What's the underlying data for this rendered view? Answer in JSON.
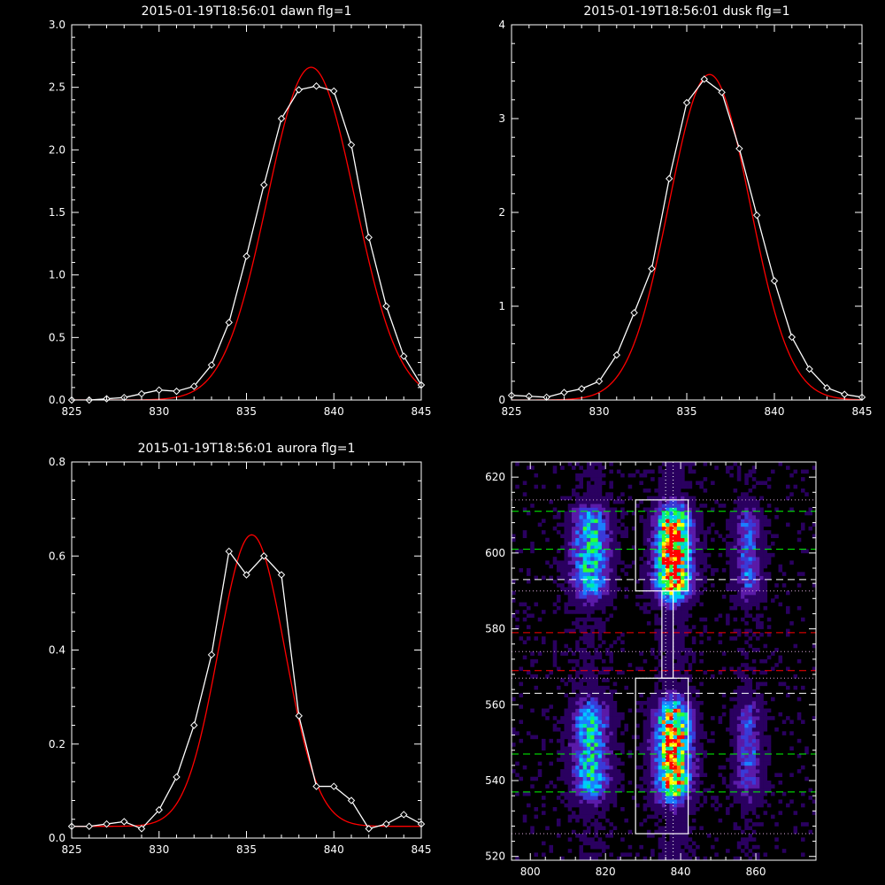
{
  "chart_data": [
    {
      "type": "line",
      "title": "2015-01-19T18:56:01 dawn flg=1",
      "xlim": [
        825,
        845
      ],
      "ylim": [
        0,
        3.0
      ],
      "xticks": [
        "825",
        "830",
        "835",
        "840",
        "845"
      ],
      "yticks": [
        "0.0",
        "0.5",
        "1.0",
        "1.5",
        "2.0",
        "2.5",
        "3.0"
      ],
      "series": [
        {
          "kind": "observed",
          "color": "#ffffff",
          "marker": "diamond",
          "x": [
            825,
            826,
            827,
            828,
            829,
            830,
            831,
            832,
            833,
            834,
            835,
            836,
            837,
            838,
            839,
            840,
            841,
            842,
            843,
            844,
            845
          ],
          "y": [
            0.0,
            0.0,
            0.01,
            0.02,
            0.05,
            0.08,
            0.07,
            0.11,
            0.28,
            0.62,
            1.15,
            1.72,
            2.25,
            2.48,
            2.51,
            2.47,
            2.04,
            1.3,
            0.75,
            0.35,
            0.12
          ]
        },
        {
          "kind": "fit",
          "color": "#ff0000",
          "model": "gaussian",
          "amplitude": 2.66,
          "center": 838.7,
          "sigma": 2.5
        }
      ]
    },
    {
      "type": "line",
      "title": "2015-01-19T18:56:01 dusk flg=1",
      "xlim": [
        825,
        845
      ],
      "ylim": [
        0,
        4
      ],
      "xticks": [
        "825",
        "830",
        "835",
        "840",
        "845"
      ],
      "yticks": [
        "0",
        "1",
        "2",
        "3",
        "4"
      ],
      "series": [
        {
          "kind": "observed",
          "color": "#ffffff",
          "marker": "diamond",
          "x": [
            825,
            826,
            827,
            828,
            829,
            830,
            831,
            832,
            833,
            834,
            835,
            836,
            837,
            838,
            839,
            840,
            841,
            842,
            843,
            844,
            845
          ],
          "y": [
            0.05,
            0.04,
            0.03,
            0.08,
            0.12,
            0.2,
            0.48,
            0.93,
            1.4,
            2.36,
            3.17,
            3.42,
            3.28,
            2.68,
            1.97,
            1.27,
            0.67,
            0.33,
            0.13,
            0.06,
            0.03
          ]
        },
        {
          "kind": "fit",
          "color": "#ff0000",
          "model": "gaussian",
          "amplitude": 3.47,
          "center": 836.3,
          "sigma": 2.3
        }
      ]
    },
    {
      "type": "line",
      "title": "2015-01-19T18:56:01 aurora flg=1",
      "xlim": [
        825,
        845
      ],
      "ylim": [
        0,
        0.8
      ],
      "xticks": [
        "825",
        "830",
        "835",
        "840",
        "845"
      ],
      "yticks": [
        "0.0",
        "0.2",
        "0.4",
        "0.6",
        "0.8"
      ],
      "series": [
        {
          "kind": "observed",
          "color": "#ffffff",
          "marker": "diamond",
          "x": [
            825,
            826,
            827,
            828,
            829,
            830,
            831,
            832,
            833,
            834,
            835,
            836,
            837,
            838,
            839,
            840,
            841,
            842,
            843,
            844,
            845
          ],
          "y": [
            0.025,
            0.025,
            0.03,
            0.035,
            0.02,
            0.06,
            0.13,
            0.24,
            0.39,
            0.61,
            0.56,
            0.6,
            0.56,
            0.26,
            0.11,
            0.11,
            0.08,
            0.02,
            0.03,
            0.05,
            0.03
          ]
        },
        {
          "kind": "fit",
          "color": "#ff0000",
          "model": "gaussian",
          "amplitude": 0.62,
          "center": 835.3,
          "sigma": 1.9,
          "offset": 0.025
        }
      ]
    },
    {
      "type": "heatmap",
      "title": "",
      "xlim": [
        795,
        876
      ],
      "ylim": [
        519,
        624
      ],
      "xticks": [
        "800",
        "820",
        "840",
        "860"
      ],
      "yticks": [
        "520",
        "540",
        "560",
        "580",
        "600",
        "620"
      ],
      "colormap": [
        "#000000",
        "#2a0060",
        "#5a1aa8",
        "#3a3ad8",
        "#1a7fff",
        "#00c8ff",
        "#00e8a0",
        "#30ff30",
        "#ffff00",
        "#ff8000",
        "#ff0000"
      ],
      "columns": [
        {
          "center": 816,
          "width": 4,
          "strength": 0.55
        },
        {
          "center": 838,
          "width": 4,
          "strength": 1.0
        },
        {
          "center": 858,
          "width": 3,
          "strength": 0.3
        }
      ],
      "rows": [
        {
          "from": 588,
          "to": 612,
          "strength": 1.0
        },
        {
          "from": 534,
          "to": 562,
          "strength": 0.9
        }
      ],
      "boxes": [
        {
          "x": [
            828,
            842
          ],
          "y": [
            590,
            614
          ]
        },
        {
          "x": [
            828,
            842
          ],
          "y": [
            526,
            567
          ]
        },
        {
          "x": [
            835,
            838
          ],
          "y": [
            567,
            590
          ]
        }
      ],
      "vlines_dotted": [
        836,
        838
      ],
      "hlines": [
        {
          "y": 611,
          "color": "#00ff00",
          "style": "dashed"
        },
        {
          "y": 601,
          "color": "#00ff00",
          "style": "dashed"
        },
        {
          "y": 593,
          "color": "#ffffff",
          "style": "dashed"
        },
        {
          "y": 579,
          "color": "#ff0000",
          "style": "dashed"
        },
        {
          "y": 569,
          "color": "#ff0000",
          "style": "dashed"
        },
        {
          "y": 563,
          "color": "#ffffff",
          "style": "dashed"
        },
        {
          "y": 547,
          "color": "#00ff00",
          "style": "dashed"
        },
        {
          "y": 537,
          "color": "#00ff00",
          "style": "dashed"
        },
        {
          "y": 614,
          "color": "#d8a8d8",
          "style": "dotted"
        },
        {
          "y": 590,
          "color": "#d8a8d8",
          "style": "dotted"
        },
        {
          "y": 574,
          "color": "#d8a8d8",
          "style": "dotted"
        },
        {
          "y": 567,
          "color": "#d8a8d8",
          "style": "dotted"
        },
        {
          "y": 526,
          "color": "#d8a8d8",
          "style": "dotted"
        }
      ]
    }
  ]
}
